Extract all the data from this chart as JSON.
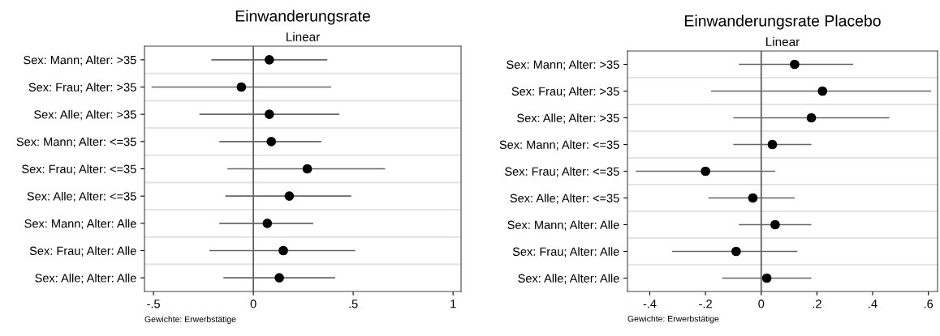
{
  "chart_data": [
    {
      "type": "scatter",
      "title": "Einwanderungsrate",
      "subtitle": "Linear",
      "orientation": "horizontal",
      "categories": [
        "Sex: Mann; Alter: >35",
        "Sex: Frau; Alter: >35",
        "Sex: Alle; Alter: >35",
        "Sex: Mann; Alter: <=35",
        "Sex: Frau; Alter: <=35",
        "Sex: Alle; Alter: <=35",
        "Sex: Mann; Alter: Alle",
        "Sex: Frau; Alter: Alle",
        "Sex: Alle; Alter: Alle"
      ],
      "series": [
        {
          "color": "#000000",
          "values": [
            0.08,
            -0.06,
            0.08,
            0.09,
            0.27,
            0.18,
            0.07,
            0.15,
            0.13
          ],
          "errors": [
            [
              -0.21,
              0.37
            ],
            [
              -0.51,
              0.39
            ],
            [
              -0.27,
              0.43
            ],
            [
              -0.17,
              0.34
            ],
            [
              -0.13,
              0.66
            ],
            [
              -0.14,
              0.49
            ],
            [
              -0.17,
              0.3
            ],
            [
              -0.22,
              0.51
            ],
            [
              -0.15,
              0.41
            ]
          ]
        }
      ],
      "xlim": [
        -0.545,
        1.04
      ],
      "xticks": [
        {
          "value": -0.5,
          "label": "-.5"
        },
        0,
        {
          "value": 0.5,
          "label": ".5"
        },
        1
      ],
      "ref_lines": [
        {
          "axis": "x",
          "value": 0,
          "color": "#555555"
        }
      ],
      "grid": "y",
      "legend": false,
      "marker": "circle",
      "annotations": [
        "Gewichte: Erwerbstätige"
      ]
    },
    {
      "type": "scatter",
      "title": "Einwanderungsrate Placebo",
      "subtitle": "Linear",
      "orientation": "horizontal",
      "categories": [
        "Sex: Mann; Alter: >35",
        "Sex: Frau; Alter: >35",
        "Sex: Alle; Alter: >35",
        "Sex: Mann; Alter: <=35",
        "Sex: Frau; Alter: <=35",
        "Sex: Alle; Alter: <=35",
        "Sex: Mann; Alter: Alle",
        "Sex: Frau; Alter: Alle",
        "Sex: Alle; Alter: Alle"
      ],
      "series": [
        {
          "color": "#000000",
          "values": [
            0.12,
            0.22,
            0.18,
            0.04,
            -0.2,
            -0.03,
            0.05,
            -0.09,
            0.02
          ],
          "errors": [
            [
              -0.08,
              0.33
            ],
            [
              -0.18,
              0.61
            ],
            [
              -0.1,
              0.46
            ],
            [
              -0.1,
              0.18
            ],
            [
              -0.45,
              0.05
            ],
            [
              -0.19,
              0.12
            ],
            [
              -0.08,
              0.18
            ],
            [
              -0.32,
              0.13
            ],
            [
              -0.14,
              0.18
            ]
          ]
        }
      ],
      "xlim": [
        -0.48,
        0.633
      ],
      "xticks": [
        {
          "value": -0.4,
          "label": "-.4"
        },
        {
          "value": -0.2,
          "label": "-.2"
        },
        0,
        {
          "value": 0.2,
          "label": ".2"
        },
        {
          "value": 0.4,
          "label": ".4"
        },
        {
          "value": 0.6,
          "label": ".6"
        }
      ],
      "ref_lines": [
        {
          "axis": "x",
          "value": 0,
          "color": "#555555"
        }
      ],
      "grid": "y",
      "legend": false,
      "marker": "circle",
      "annotations": [
        "Gewichte: Erwerbstätige"
      ]
    }
  ]
}
